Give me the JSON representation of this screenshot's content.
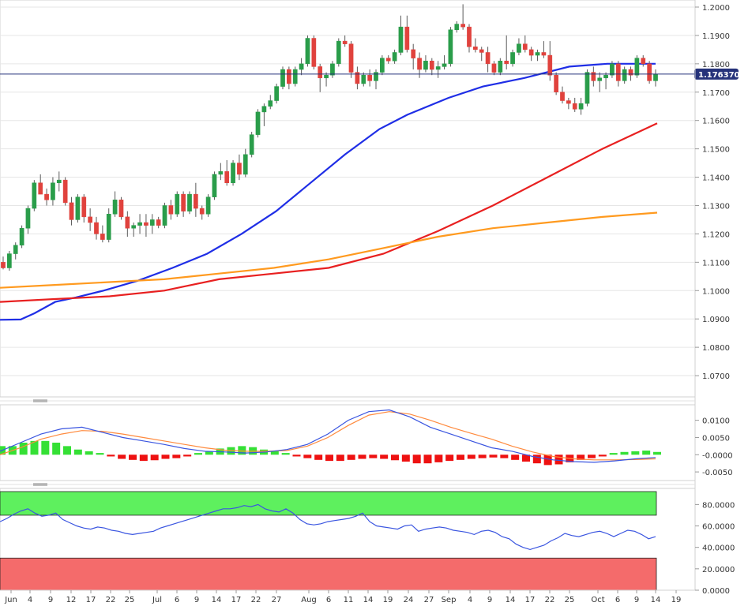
{
  "chart_data": [
    {
      "type": "candlestick",
      "title": "",
      "current_price": "1.176370",
      "ylim": [
        1.0625,
        1.2025
      ],
      "y_ticks": [
        "1.2000",
        "1.1900",
        "1.1800",
        "1.1700",
        "1.1600",
        "1.1500",
        "1.1400",
        "1.1300",
        "1.1200",
        "1.1100",
        "1.1000",
        "1.0900",
        "1.0800",
        "1.0700"
      ],
      "x_labels": [
        "Jun",
        "4",
        "9",
        "12",
        "17",
        "22",
        "25",
        "Jul",
        "6",
        "9",
        "14",
        "17",
        "22",
        "27",
        "Aug",
        "6",
        "11",
        "14",
        "19",
        "24",
        "27",
        "Sep",
        "4",
        "9",
        "14",
        "17",
        "22",
        "25",
        "Oct",
        "6",
        "9",
        "14",
        "19"
      ],
      "candles": [
        [
          1.11,
          1.112,
          1.1075,
          1.108
        ],
        [
          1.108,
          1.114,
          1.107,
          1.113
        ],
        [
          1.113,
          1.117,
          1.111,
          1.116
        ],
        [
          1.116,
          1.123,
          1.115,
          1.122
        ],
        [
          1.122,
          1.13,
          1.12,
          1.129
        ],
        [
          1.129,
          1.139,
          1.128,
          1.138
        ],
        [
          1.138,
          1.141,
          1.134,
          1.134
        ],
        [
          1.134,
          1.136,
          1.13,
          1.132
        ],
        [
          1.132,
          1.14,
          1.13,
          1.138
        ],
        [
          1.138,
          1.142,
          1.135,
          1.139
        ],
        [
          1.139,
          1.14,
          1.13,
          1.131
        ],
        [
          1.131,
          1.133,
          1.123,
          1.125
        ],
        [
          1.125,
          1.134,
          1.124,
          1.133
        ],
        [
          1.133,
          1.134,
          1.124,
          1.126
        ],
        [
          1.126,
          1.129,
          1.121,
          1.124
        ],
        [
          1.124,
          1.126,
          1.118,
          1.12
        ],
        [
          1.12,
          1.123,
          1.117,
          1.118
        ],
        [
          1.118,
          1.129,
          1.117,
          1.127
        ],
        [
          1.127,
          1.135,
          1.126,
          1.132
        ],
        [
          1.132,
          1.133,
          1.125,
          1.126
        ],
        [
          1.126,
          1.128,
          1.119,
          1.122
        ],
        [
          1.122,
          1.124,
          1.119,
          1.123
        ],
        [
          1.123,
          1.127,
          1.12,
          1.124
        ],
        [
          1.124,
          1.127,
          1.119,
          1.123
        ],
        [
          1.123,
          1.127,
          1.12,
          1.125
        ],
        [
          1.125,
          1.126,
          1.122,
          1.123
        ],
        [
          1.123,
          1.131,
          1.122,
          1.13
        ],
        [
          1.13,
          1.132,
          1.125,
          1.127
        ],
        [
          1.127,
          1.135,
          1.126,
          1.134
        ],
        [
          1.134,
          1.135,
          1.126,
          1.128
        ],
        [
          1.128,
          1.135,
          1.127,
          1.134
        ],
        [
          1.134,
          1.138,
          1.126,
          1.129
        ],
        [
          1.129,
          1.13,
          1.125,
          1.127
        ],
        [
          1.127,
          1.134,
          1.126,
          1.133
        ],
        [
          1.133,
          1.142,
          1.132,
          1.141
        ],
        [
          1.141,
          1.145,
          1.139,
          1.142
        ],
        [
          1.142,
          1.146,
          1.137,
          1.138
        ],
        [
          1.138,
          1.146,
          1.137,
          1.145
        ],
        [
          1.145,
          1.148,
          1.139,
          1.141
        ],
        [
          1.141,
          1.15,
          1.14,
          1.148
        ],
        [
          1.148,
          1.156,
          1.147,
          1.155
        ],
        [
          1.155,
          1.164,
          1.154,
          1.163
        ],
        [
          1.163,
          1.166,
          1.158,
          1.165
        ],
        [
          1.165,
          1.169,
          1.164,
          1.167
        ],
        [
          1.167,
          1.173,
          1.166,
          1.172
        ],
        [
          1.172,
          1.179,
          1.171,
          1.178
        ],
        [
          1.178,
          1.179,
          1.171,
          1.173
        ],
        [
          1.173,
          1.179,
          1.172,
          1.178
        ],
        [
          1.178,
          1.182,
          1.176,
          1.18
        ],
        [
          1.18,
          1.19,
          1.179,
          1.189
        ],
        [
          1.189,
          1.19,
          1.178,
          1.179
        ],
        [
          1.179,
          1.18,
          1.17,
          1.175
        ],
        [
          1.175,
          1.177,
          1.172,
          1.176
        ],
        [
          1.176,
          1.181,
          1.175,
          1.18
        ],
        [
          1.18,
          1.189,
          1.179,
          1.188
        ],
        [
          1.188,
          1.19,
          1.186,
          1.187
        ],
        [
          1.187,
          1.188,
          1.175,
          1.177
        ],
        [
          1.177,
          1.179,
          1.171,
          1.173
        ],
        [
          1.173,
          1.177,
          1.172,
          1.176
        ],
        [
          1.176,
          1.178,
          1.172,
          1.174
        ],
        [
          1.174,
          1.178,
          1.171,
          1.177
        ],
        [
          1.177,
          1.183,
          1.176,
          1.182
        ],
        [
          1.182,
          1.183,
          1.18,
          1.181
        ],
        [
          1.181,
          1.185,
          1.18,
          1.184
        ],
        [
          1.184,
          1.197,
          1.183,
          1.193
        ],
        [
          1.193,
          1.197,
          1.184,
          1.185
        ],
        [
          1.185,
          1.187,
          1.178,
          1.182
        ],
        [
          1.182,
          1.184,
          1.175,
          1.178
        ],
        [
          1.178,
          1.183,
          1.177,
          1.181
        ],
        [
          1.181,
          1.182,
          1.176,
          1.178
        ],
        [
          1.178,
          1.181,
          1.175,
          1.179
        ],
        [
          1.179,
          1.183,
          1.178,
          1.18
        ],
        [
          1.18,
          1.193,
          1.179,
          1.192
        ],
        [
          1.192,
          1.195,
          1.191,
          1.194
        ],
        [
          1.194,
          1.201,
          1.192,
          1.193
        ],
        [
          1.193,
          1.194,
          1.184,
          1.186
        ],
        [
          1.186,
          1.189,
          1.184,
          1.185
        ],
        [
          1.185,
          1.186,
          1.181,
          1.184
        ],
        [
          1.184,
          1.186,
          1.177,
          1.18
        ],
        [
          1.18,
          1.181,
          1.176,
          1.177
        ],
        [
          1.177,
          1.182,
          1.176,
          1.181
        ],
        [
          1.181,
          1.19,
          1.178,
          1.18
        ],
        [
          1.18,
          1.185,
          1.179,
          1.184
        ],
        [
          1.184,
          1.189,
          1.183,
          1.187
        ],
        [
          1.187,
          1.19,
          1.184,
          1.185
        ],
        [
          1.185,
          1.186,
          1.181,
          1.183
        ],
        [
          1.183,
          1.185,
          1.181,
          1.184
        ],
        [
          1.184,
          1.188,
          1.182,
          1.183
        ],
        [
          1.183,
          1.188,
          1.174,
          1.176
        ],
        [
          1.176,
          1.177,
          1.169,
          1.17
        ],
        [
          1.17,
          1.172,
          1.166,
          1.167
        ],
        [
          1.167,
          1.168,
          1.164,
          1.166
        ],
        [
          1.166,
          1.168,
          1.163,
          1.164
        ],
        [
          1.164,
          1.168,
          1.162,
          1.166
        ],
        [
          1.166,
          1.178,
          1.165,
          1.177
        ],
        [
          1.177,
          1.179,
          1.172,
          1.174
        ],
        [
          1.174,
          1.177,
          1.17,
          1.175
        ],
        [
          1.175,
          1.177,
          1.171,
          1.176
        ],
        [
          1.176,
          1.181,
          1.175,
          1.18
        ],
        [
          1.18,
          1.181,
          1.172,
          1.174
        ],
        [
          1.174,
          1.179,
          1.173,
          1.178
        ],
        [
          1.178,
          1.179,
          1.174,
          1.176
        ],
        [
          1.176,
          1.183,
          1.175,
          1.182
        ],
        [
          1.182,
          1.183,
          1.179,
          1.18
        ],
        [
          1.18,
          1.181,
          1.173,
          1.174
        ],
        [
          1.174,
          1.178,
          1.172,
          1.1764
        ]
      ],
      "series": [
        {
          "name": "",
          "color": "#1f2ee6",
          "kind": "ma",
          "values": [
            [
              0,
              1.0897
            ],
            [
              6,
              1.0898
            ],
            [
              10,
              1.092
            ],
            [
              16,
              1.096
            ],
            [
              22,
              1.0976
            ],
            [
              30,
              1.1
            ],
            [
              40,
              1.1035
            ],
            [
              50,
              1.108
            ],
            [
              60,
              1.113
            ],
            [
              70,
              1.12
            ],
            [
              80,
              1.128
            ],
            [
              90,
              1.138
            ],
            [
              100,
              1.148
            ],
            [
              110,
              1.157
            ],
            [
              118,
              1.162
            ],
            [
              130,
              1.168
            ],
            [
              140,
              1.172
            ],
            [
              152,
              1.175
            ],
            [
              165,
              1.179
            ],
            [
              176,
              1.18
            ],
            [
              190,
              1.18
            ]
          ]
        },
        {
          "name": "",
          "color": "#e82020",
          "kind": "ma",
          "values": [
            [
              0,
              1.096
            ],
            [
              20,
              1.097
            ],
            [
              40,
              1.098
            ],
            [
              60,
              1.1
            ],
            [
              80,
              1.104
            ],
            [
              100,
              1.106
            ],
            [
              120,
              1.108
            ],
            [
              140,
              1.113
            ],
            [
              160,
              1.121
            ],
            [
              180,
              1.13
            ],
            [
              200,
              1.14
            ],
            [
              220,
              1.15
            ],
            [
              240,
              1.159
            ]
          ]
        },
        {
          "name": "",
          "color": "#ff9a1f",
          "kind": "ma",
          "values": [
            [
              0,
              1.101
            ],
            [
              20,
              1.102
            ],
            [
              40,
              1.103
            ],
            [
              60,
              1.104
            ],
            [
              80,
              1.106
            ],
            [
              100,
              1.108
            ],
            [
              120,
              1.111
            ],
            [
              140,
              1.115
            ],
            [
              160,
              1.119
            ],
            [
              180,
              1.122
            ],
            [
              200,
              1.124
            ],
            [
              220,
              1.126
            ],
            [
              240,
              1.1275
            ]
          ]
        }
      ]
    },
    {
      "type": "macd",
      "ylim": [
        -0.0075,
        0.0145
      ],
      "y_ticks": [
        "0.0100",
        "0.0050",
        "-0.0000",
        "-0.0050"
      ],
      "macd": [
        0.001,
        0.0035,
        0.006,
        0.0075,
        0.008,
        0.0065,
        0.005,
        0.004,
        0.003,
        0.0018,
        0.001,
        0.0008,
        0.0005,
        0.0008,
        0.0015,
        0.003,
        0.006,
        0.01,
        0.0125,
        0.013,
        0.011,
        0.008,
        0.006,
        0.004,
        0.002,
        0.001,
        -0.0005,
        -0.0015,
        -0.002,
        -0.0022,
        -0.0018,
        -0.0012,
        -0.0008
      ],
      "signal": [
        0.0,
        0.002,
        0.0045,
        0.006,
        0.007,
        0.0068,
        0.006,
        0.005,
        0.004,
        0.003,
        0.002,
        0.0013,
        0.001,
        0.001,
        0.0012,
        0.0025,
        0.005,
        0.0085,
        0.0115,
        0.0125,
        0.0118,
        0.01,
        0.008,
        0.0062,
        0.0045,
        0.0025,
        0.0008,
        -0.0005,
        -0.0012,
        -0.0015,
        -0.0015,
        -0.0014,
        -0.0012
      ],
      "histogram": [
        0.0025,
        0.0025,
        0.0035,
        0.004,
        0.004,
        0.0035,
        0.0025,
        0.0015,
        0.001,
        0.0005,
        -0.0005,
        -0.0012,
        -0.0015,
        -0.0018,
        -0.0016,
        -0.0012,
        -0.001,
        -0.0005,
        0.0005,
        0.001,
        0.0018,
        0.0022,
        0.0025,
        0.0022,
        0.0015,
        0.001,
        0.0005,
        -0.0005,
        -0.001,
        -0.0015,
        -0.0018,
        -0.0018,
        -0.0015,
        -0.0012,
        -0.001,
        -0.0012,
        -0.0016,
        -0.002,
        -0.0025,
        -0.0025,
        -0.0022,
        -0.0018,
        -0.0015,
        -0.0012,
        -0.001,
        -0.0008,
        -0.001,
        -0.0015,
        -0.002,
        -0.0025,
        -0.003,
        -0.0028,
        -0.0022,
        -0.0015,
        -0.001,
        -0.0005,
        0.0005,
        0.0008,
        0.001,
        0.0012,
        0.0008
      ]
    },
    {
      "type": "line",
      "ylim": [
        0,
        95
      ],
      "y_ticks": [
        "80.0000",
        "60.0000",
        "40.0000",
        "20.0000",
        "0.0000"
      ],
      "overbought_color": "#5ef05e",
      "oversold_color": "#f46b6b",
      "values": [
        64,
        67,
        71,
        74,
        76,
        72,
        69,
        70,
        72,
        66,
        63,
        60,
        58,
        57,
        59,
        58,
        56,
        55,
        53,
        52,
        53,
        54,
        55,
        58,
        60,
        62,
        64,
        66,
        68,
        70,
        72,
        74,
        76,
        76,
        77,
        79,
        78,
        80,
        76,
        74,
        73,
        76,
        72,
        66,
        62,
        61,
        62,
        64,
        65,
        66,
        67,
        69,
        72,
        64,
        60,
        59,
        58,
        57,
        60,
        61,
        55,
        57,
        58,
        59,
        58,
        56,
        55,
        54,
        52,
        55,
        56,
        54,
        50,
        48,
        43,
        40,
        38,
        40,
        42,
        46,
        49,
        53,
        51,
        50,
        52,
        54,
        55,
        53,
        50,
        53,
        56,
        55,
        52,
        48,
        50
      ]
    }
  ],
  "colors": {
    "up": "#2a9d4a",
    "down": "#e0423d",
    "wick": "#5a5a5a",
    "price_line": "#25327a",
    "badge": "#25327a",
    "grid": "#e6e6e6",
    "hist_pos": "#35e035",
    "hist_neg": "#ee1111"
  }
}
